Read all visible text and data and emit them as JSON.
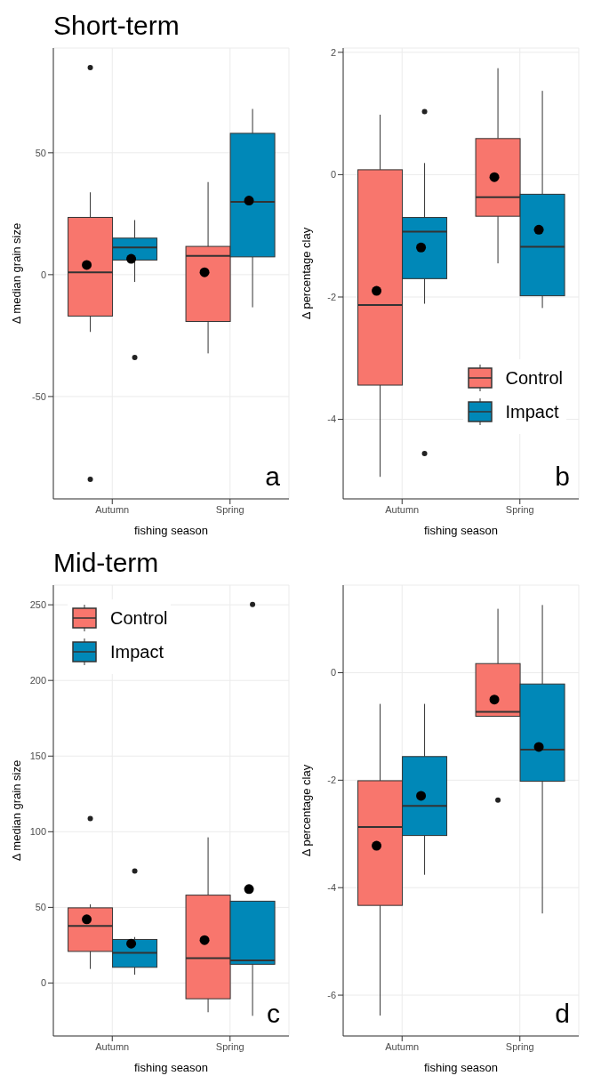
{
  "chart_data": [
    {
      "type": "box",
      "title": "Short-term",
      "categories": [
        "Autumn",
        "Spring"
      ],
      "xlabel": "fishing season",
      "ylabel": "Δ median grain size",
      "ylim": [
        -92,
        93
      ],
      "yticks": [
        -50,
        0,
        50
      ],
      "grid": true,
      "legend": false,
      "annotations": [
        "a"
      ],
      "series": [
        {
          "color": "#f8766d",
          "boxes": [
            {
              "low": -23.5,
              "q1": -17,
              "median": 1,
              "q3": 23.5,
              "high": 33.8,
              "mean": 4,
              "outliers": [
                85,
                -84
              ]
            },
            {
              "low": -32.3,
              "q1": -19.2,
              "median": 7.7,
              "q3": 11.6,
              "high": 38,
              "mean": 1
            }
          ]
        },
        {
          "color": "#0088b8",
          "boxes": [
            {
              "low": -3,
              "q1": 6,
              "median": 11.2,
              "q3": 15,
              "high": 22.4,
              "mean": 6.5,
              "outliers": [
                -34
              ]
            },
            {
              "low": -13.4,
              "q1": 7.3,
              "median": 29.9,
              "q3": 58,
              "high": 68,
              "mean": 30.4
            }
          ]
        }
      ]
    },
    {
      "type": "box",
      "categories": [
        "Autumn",
        "Spring"
      ],
      "xlabel": "fishing season",
      "ylabel": "Δ percentage clay",
      "ylim": [
        -5.3,
        2.07
      ],
      "yticks": [
        -4,
        -2,
        0,
        2
      ],
      "grid": true,
      "legend": "bottom right",
      "annotations": [
        "b"
      ],
      "series": [
        {
          "name": "Control",
          "color": "#f8766d",
          "boxes": [
            {
              "low": -4.94,
              "q1": -3.44,
              "median": -2.13,
              "q3": 0.08,
              "high": 0.98,
              "mean": -1.9
            },
            {
              "low": -1.45,
              "q1": -0.68,
              "median": -0.37,
              "q3": 0.59,
              "high": 1.74,
              "mean": -0.04
            }
          ]
        },
        {
          "name": "Impact",
          "color": "#0088b8",
          "boxes": [
            {
              "low": -2.11,
              "q1": -1.7,
              "median": -0.93,
              "q3": -0.7,
              "high": 0.19,
              "mean": -1.19,
              "outliers": [
                1.03,
                -4.56
              ]
            },
            {
              "low": -2.18,
              "q1": -1.98,
              "median": -1.18,
              "q3": -0.32,
              "high": 1.37,
              "mean": -0.9
            }
          ]
        }
      ]
    },
    {
      "type": "box",
      "title": "Mid-term",
      "categories": [
        "Autumn",
        "Spring"
      ],
      "xlabel": "fishing season",
      "ylabel": "Δ median grain size",
      "ylim": [
        -35,
        263
      ],
      "yticks": [
        0,
        50,
        100,
        150,
        200,
        250
      ],
      "grid": true,
      "legend": "top left",
      "annotations": [
        "c"
      ],
      "series": [
        {
          "name": "Control",
          "color": "#f8766d",
          "boxes": [
            {
              "low": 9.3,
              "q1": 20.9,
              "median": 37.7,
              "q3": 49.7,
              "high": 52,
              "mean": 42.1,
              "outliers": [
                108.7
              ]
            },
            {
              "low": -19.3,
              "q1": -10.4,
              "median": 16.4,
              "q3": 58.1,
              "high": 96.3,
              "mean": 28.4
            }
          ]
        },
        {
          "name": "Impact",
          "color": "#0088b8",
          "boxes": [
            {
              "low": 5.5,
              "q1": 10.4,
              "median": 20,
              "q3": 28.8,
              "high": 30.4,
              "mean": 26,
              "outliers": [
                74
              ]
            },
            {
              "low": -21.7,
              "q1": 12.4,
              "median": 14.9,
              "q3": 54.1,
              "high": 54.1,
              "mean": 62.1,
              "outliers": [
                250.2
              ]
            }
          ]
        }
      ]
    },
    {
      "type": "box",
      "categories": [
        "Autumn",
        "Spring"
      ],
      "xlabel": "fishing season",
      "ylabel": "Δ percentage clay",
      "ylim": [
        -6.76,
        1.63
      ],
      "yticks": [
        -6,
        -4,
        -2,
        0
      ],
      "grid": true,
      "legend": false,
      "annotations": [
        "d"
      ],
      "series": [
        {
          "color": "#f8766d",
          "boxes": [
            {
              "low": -6.38,
              "q1": -4.33,
              "median": -2.87,
              "q3": -2.01,
              "high": -0.58,
              "mean": -3.22
            },
            {
              "low": -0.81,
              "q1": -0.81,
              "median": -0.73,
              "q3": 0.17,
              "high": 1.19,
              "mean": -0.5,
              "outliers": [
                -2.37
              ]
            }
          ]
        },
        {
          "color": "#0088b8",
          "boxes": [
            {
              "low": -3.76,
              "q1": -3.03,
              "median": -2.48,
              "q3": -1.56,
              "high": -0.58,
              "mean": -2.29
            },
            {
              "low": -4.48,
              "q1": -2.02,
              "median": -1.43,
              "q3": -0.21,
              "high": 1.26,
              "mean": -1.38
            }
          ]
        }
      ]
    }
  ]
}
